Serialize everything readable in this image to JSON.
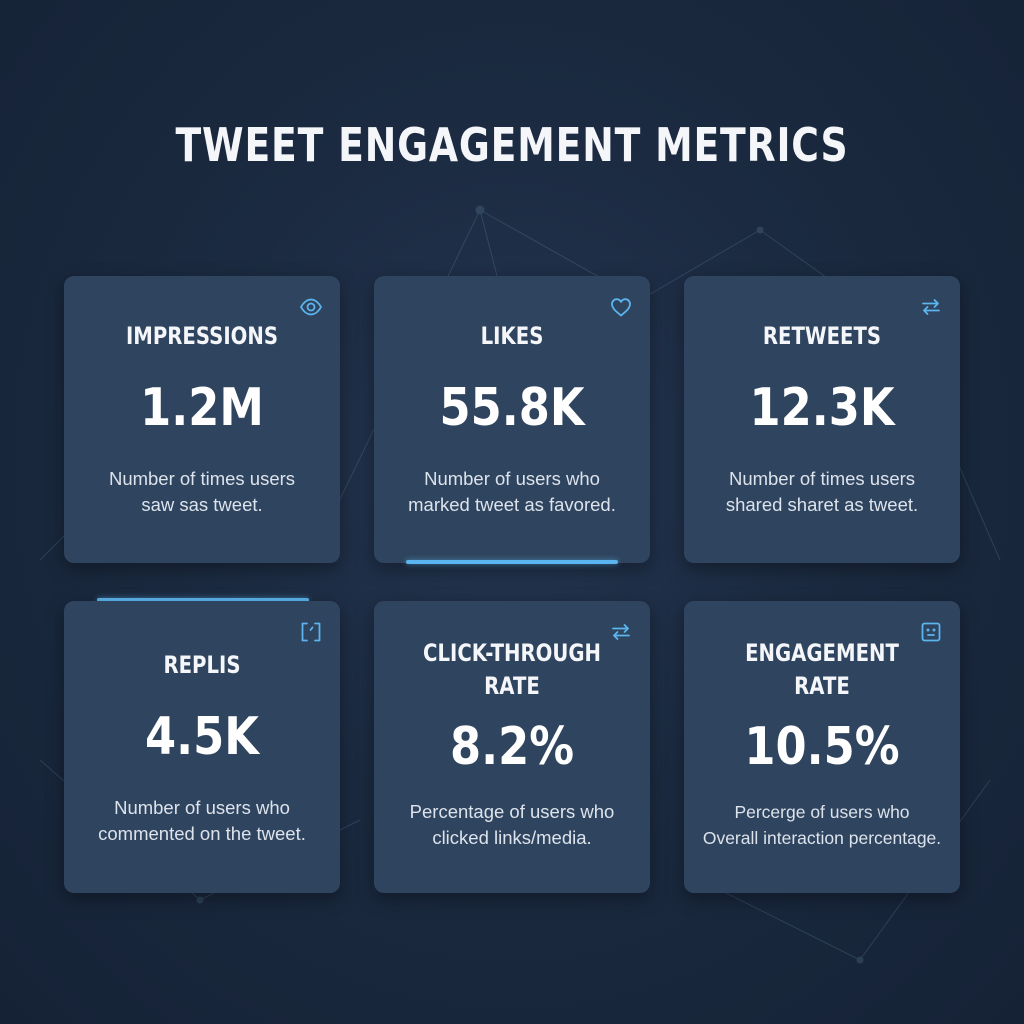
{
  "page": {
    "title": "TWEET ENGAGEMENT METRICS"
  },
  "colors": {
    "background": "#1b2a40",
    "card": "#2f445e",
    "accent": "#5bb5ee",
    "text": "#ffffff"
  },
  "cards": [
    {
      "label": "IMPRESSIONS",
      "value": "1.2M",
      "description": "Number of times users\nsaw sas tweet.",
      "icon": "eye-icon"
    },
    {
      "label": "LIKES",
      "value": "55.8K",
      "description": "Number of users who\nmarked tweet as favored.",
      "icon": "heart-icon"
    },
    {
      "label": "RETWEETS",
      "value": "12.3K",
      "description": "Number of times users\nshared sharet as tweet.",
      "icon": "retweet-icon"
    },
    {
      "label": "REPLIS",
      "value": "4.5K",
      "description": "Number of users who\ncommented on the tweet.",
      "icon": "expand-icon"
    },
    {
      "label": "CLICK-THROUGH\nRATE",
      "value": "8.2%",
      "description": "Percentage of users who\nclicked links/media.",
      "icon": "arrows-swap-icon"
    },
    {
      "label": "ENGAGEMENT\nRATE",
      "value": "10.5%",
      "description": "Percerge of users who\nOverall interaction percentage.",
      "icon": "face-icon"
    }
  ]
}
